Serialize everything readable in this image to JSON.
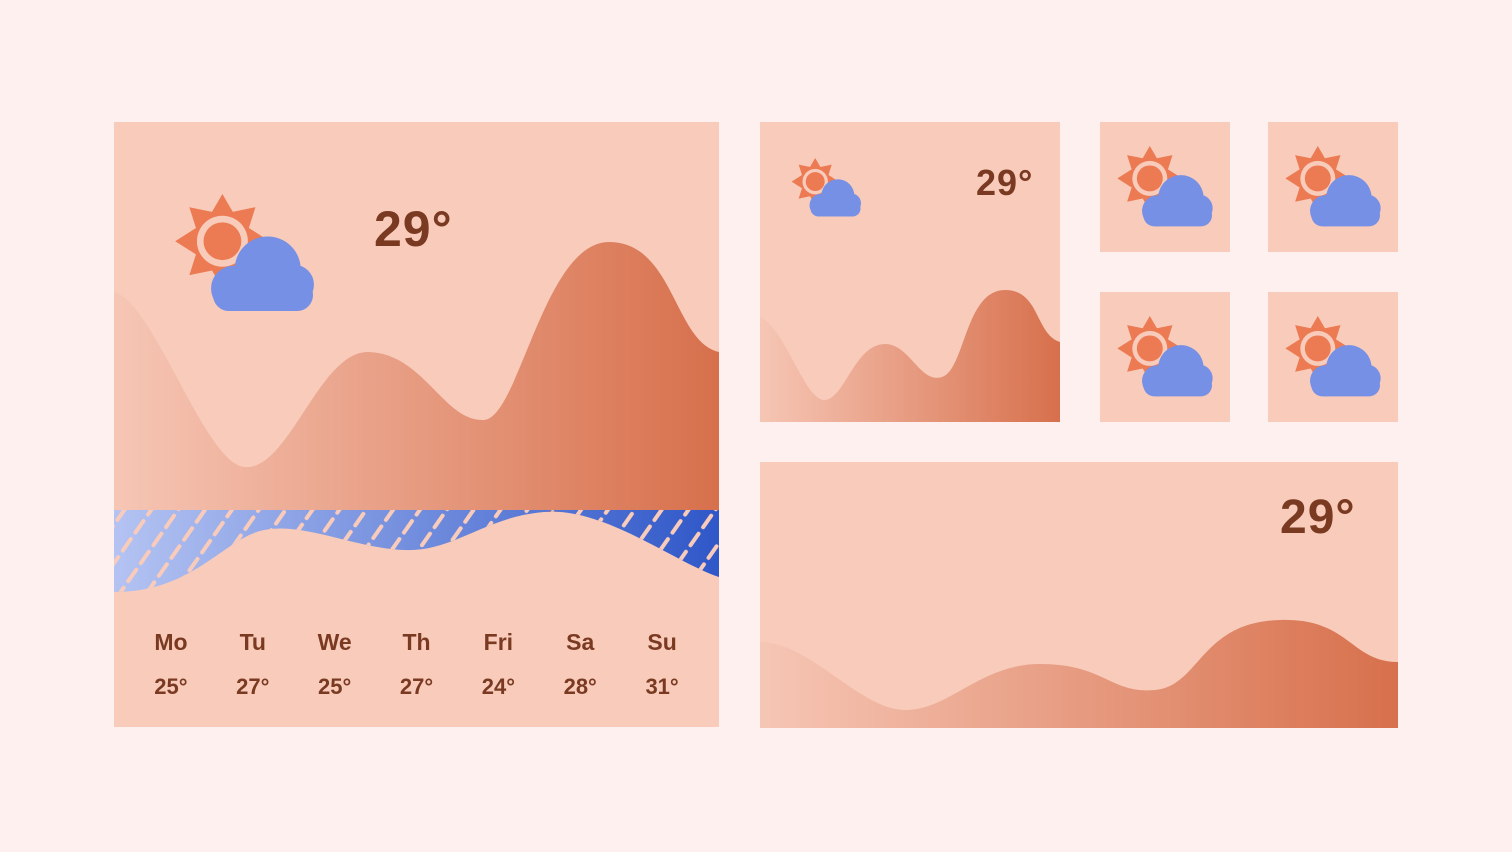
{
  "large_widget": {
    "temperature": "29°",
    "icon": "sun-cloud-icon",
    "forecast": [
      {
        "day": "Mo",
        "temp": "25°"
      },
      {
        "day": "Tu",
        "temp": "27°"
      },
      {
        "day": "We",
        "temp": "25°"
      },
      {
        "day": "Th",
        "temp": "27°"
      },
      {
        "day": "Fri",
        "temp": "24°"
      },
      {
        "day": "Sa",
        "temp": "28°"
      },
      {
        "day": "Su",
        "temp": "31°"
      }
    ]
  },
  "medium_widget": {
    "temperature": "29°",
    "icon": "sun-cloud-icon"
  },
  "small_widgets": [
    {
      "icon": "sun-cloud-icon"
    },
    {
      "icon": "sun-cloud-icon"
    },
    {
      "icon": "sun-cloud-icon"
    },
    {
      "icon": "sun-cloud-icon"
    }
  ],
  "wide_widget": {
    "temperature": "29°"
  },
  "colors": {
    "background": "#FDF0EE",
    "card": "#F8CBBB",
    "text": "#7A3A22",
    "sun": "#EC7A52",
    "cloud": "#7690E5",
    "rain_dark": "#2F57C8",
    "rain_light": "#B4C3F2"
  }
}
